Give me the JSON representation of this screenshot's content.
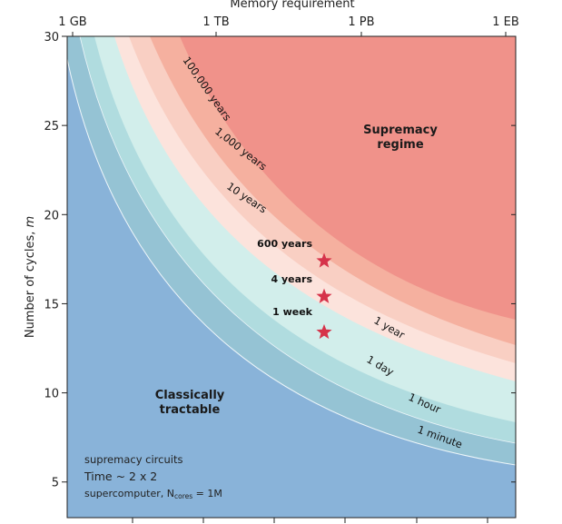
{
  "chart_data": {
    "type": "area",
    "title": "",
    "xlabel_top": "Memory requirement",
    "ylabel": "Number of cycles, m",
    "ylabel_main": "Number of cycles, ",
    "ylabel_var": "m",
    "ylim": [
      3,
      30
    ],
    "yticks": [
      5,
      10,
      15,
      20,
      25,
      30
    ],
    "top_ticks": [
      "1 GB",
      "1 TB",
      "1 PB",
      "1 EB"
    ],
    "colors": {
      "supremacy": "#e8686d",
      "band_100000_years": "#f0928a",
      "band_1000_years": "#f5b09f",
      "band_10_years": "#f9cfc3",
      "band_1_year": "#fce3dc",
      "band_1_day": "#d2eeeb",
      "band_1_hour": "#b0dcdf",
      "band_1_minute": "#95c3d4",
      "classical": "#89b3d9",
      "star": "#d6334a",
      "axis": "#222222"
    },
    "bands": [
      {
        "label": "100,000 years"
      },
      {
        "label": "1,000 years"
      },
      {
        "label": "10 years"
      },
      {
        "label": "1 year"
      },
      {
        "label": "1 day"
      },
      {
        "label": "1 hour"
      },
      {
        "label": "1 minute"
      }
    ],
    "regions": {
      "supremacy": {
        "line1": "Supremacy",
        "line2": "regime"
      },
      "classical": {
        "line1": "Classically",
        "line2": "tractable"
      }
    },
    "points": [
      {
        "label": "600 years",
        "m": 17.4
      },
      {
        "label": "4 years",
        "m": 15.4
      },
      {
        "label": "1 week",
        "m": 13.4
      }
    ],
    "notes": {
      "line1": "supremacy circuits",
      "line2": "Time ~ 2 x 2",
      "line3_main": "supercomputer, N",
      "line3_sub": "cores",
      "line3_end": " = 1M"
    }
  }
}
